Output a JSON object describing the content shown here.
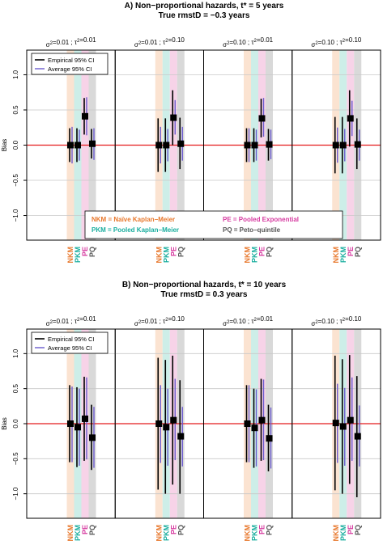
{
  "figure": {
    "colors": {
      "NKM": "#e8792e",
      "PKM": "#1aae9f",
      "PE": "#d63aa0",
      "PQ": "#555555",
      "NKM_band": "#fbe3d1",
      "PKM_band": "#cdeee8",
      "PE_band": "#f7d3e8",
      "PQ_band": "#d9d9d9",
      "zero_line": "#e41a1c",
      "empirical": "#000000",
      "average": "#6a5acd"
    },
    "categories": [
      "NKM",
      "PKM",
      "PE",
      "PQ"
    ],
    "legend": {
      "empirical": "Empirical 95% CI",
      "average": "Average 95% CI"
    },
    "notes": [
      {
        "code": "NKM",
        "text": "NKM = Naïve Kaplan−Meier"
      },
      {
        "code": "PE",
        "text": "PE = Pooled Exponential"
      },
      {
        "code": "PKM",
        "text": "PKM = Pooled Kaplan−Meier"
      },
      {
        "code": "PQ",
        "text": "PQ = Peto−quintile"
      }
    ]
  },
  "chart_data": [
    {
      "type": "scatter",
      "title": "A) Non−proportional hazards, t* = 5 years",
      "subtitle": "True rmstD = −0.3 years",
      "ylabel": "Bias",
      "ylim": [
        -1.35,
        1.35
      ],
      "yticks": [
        -1.0,
        -0.5,
        0.0,
        0.5,
        1.0
      ],
      "ytick_labels": [
        "−1.0",
        "−0.5",
        "0.0",
        "0.5",
        "1.0"
      ],
      "grid": true,
      "legend_position": "top-left",
      "panels": [
        {
          "label": "σ²=0.01 ; τ²=0.01",
          "points": [
            {
              "method": "NKM",
              "bias": 0.0,
              "emp": [
                -0.24,
                0.24
              ],
              "avg": [
                -0.26,
                0.26
              ]
            },
            {
              "method": "PKM",
              "bias": 0.0,
              "emp": [
                -0.24,
                0.24
              ],
              "avg": [
                -0.22,
                0.22
              ]
            },
            {
              "method": "PE",
              "bias": 0.41,
              "emp": [
                0.15,
                0.67
              ],
              "avg": [
                0.14,
                0.68
              ]
            },
            {
              "method": "PQ",
              "bias": 0.02,
              "emp": [
                -0.19,
                0.23
              ],
              "avg": [
                -0.21,
                0.24
              ]
            }
          ]
        },
        {
          "label": "σ²=0.01 ; τ²=0.10",
          "points": [
            {
              "method": "NKM",
              "bias": 0.0,
              "emp": [
                -0.38,
                0.38
              ],
              "avg": [
                -0.26,
                0.26
              ]
            },
            {
              "method": "PKM",
              "bias": 0.0,
              "emp": [
                -0.38,
                0.38
              ],
              "avg": [
                -0.23,
                0.23
              ]
            },
            {
              "method": "PE",
              "bias": 0.39,
              "emp": [
                0.0,
                0.78
              ],
              "avg": [
                0.15,
                0.64
              ]
            },
            {
              "method": "PQ",
              "bias": 0.02,
              "emp": [
                -0.34,
                0.39
              ],
              "avg": [
                -0.22,
                0.26
              ]
            }
          ]
        },
        {
          "label": "σ²=0.10 ; τ²=0.01",
          "points": [
            {
              "method": "NKM",
              "bias": 0.0,
              "emp": [
                -0.24,
                0.24
              ],
              "avg": [
                -0.24,
                0.24
              ]
            },
            {
              "method": "PKM",
              "bias": 0.0,
              "emp": [
                -0.24,
                0.24
              ],
              "avg": [
                -0.22,
                0.22
              ]
            },
            {
              "method": "PE",
              "bias": 0.38,
              "emp": [
                0.11,
                0.66
              ],
              "avg": [
                0.12,
                0.67
              ]
            },
            {
              "method": "PQ",
              "bias": 0.01,
              "emp": [
                -0.22,
                0.23
              ],
              "avg": [
                -0.2,
                0.22
              ]
            }
          ]
        },
        {
          "label": "σ²=0.10 ; τ²=0.10",
          "points": [
            {
              "method": "NKM",
              "bias": 0.0,
              "emp": [
                -0.4,
                0.4
              ],
              "avg": [
                -0.25,
                0.25
              ]
            },
            {
              "method": "PKM",
              "bias": 0.0,
              "emp": [
                -0.4,
                0.4
              ],
              "avg": [
                -0.23,
                0.23
              ]
            },
            {
              "method": "PE",
              "bias": 0.38,
              "emp": [
                -0.02,
                0.78
              ],
              "avg": [
                0.13,
                0.63
              ]
            },
            {
              "method": "PQ",
              "bias": 0.01,
              "emp": [
                -0.34,
                0.38
              ],
              "avg": [
                -0.22,
                0.22
              ]
            }
          ]
        }
      ]
    },
    {
      "type": "scatter",
      "title": "B) Non−proportional hazards, t* = 10 years",
      "subtitle": "True rmstD = 0.3 years",
      "ylabel": "Bias",
      "ylim": [
        -1.35,
        1.35
      ],
      "yticks": [
        -1.0,
        -0.5,
        0.0,
        0.5,
        1.0
      ],
      "ytick_labels": [
        "−1.0",
        "−0.5",
        "0.0",
        "0.5",
        "1.0"
      ],
      "grid": true,
      "legend_position": "top-left",
      "panels": [
        {
          "label": "σ²=0.01 ; τ²=0.01",
          "points": [
            {
              "method": "NKM",
              "bias": 0.0,
              "emp": [
                -0.55,
                0.55
              ],
              "avg": [
                -0.55,
                0.53
              ]
            },
            {
              "method": "PKM",
              "bias": -0.05,
              "emp": [
                -0.62,
                0.52
              ],
              "avg": [
                -0.6,
                0.5
              ]
            },
            {
              "method": "PE",
              "bias": 0.07,
              "emp": [
                -0.53,
                0.67
              ],
              "avg": [
                -0.51,
                0.66
              ]
            },
            {
              "method": "PQ",
              "bias": -0.2,
              "emp": [
                -0.66,
                0.27
              ],
              "avg": [
                -0.63,
                0.24
              ]
            }
          ]
        },
        {
          "label": "σ²=0.01 ; τ²=0.10",
          "points": [
            {
              "method": "NKM",
              "bias": 0.0,
              "emp": [
                -0.94,
                0.94
              ],
              "avg": [
                -0.56,
                0.55
              ]
            },
            {
              "method": "PKM",
              "bias": -0.05,
              "emp": [
                -1.0,
                0.91
              ],
              "avg": [
                -0.6,
                0.5
              ]
            },
            {
              "method": "PE",
              "bias": 0.05,
              "emp": [
                -0.87,
                0.97
              ],
              "avg": [
                -0.52,
                0.64
              ]
            },
            {
              "method": "PQ",
              "bias": -0.18,
              "emp": [
                -1.0,
                0.62
              ],
              "avg": [
                -0.61,
                0.24
              ]
            }
          ]
        },
        {
          "label": "σ²=0.10 ; τ²=0.01",
          "points": [
            {
              "method": "NKM",
              "bias": 0.0,
              "emp": [
                -0.55,
                0.55
              ],
              "avg": [
                -0.55,
                0.55
              ]
            },
            {
              "method": "PKM",
              "bias": -0.06,
              "emp": [
                -0.63,
                0.5
              ],
              "avg": [
                -0.61,
                0.49
              ]
            },
            {
              "method": "PE",
              "bias": 0.05,
              "emp": [
                -0.53,
                0.64
              ],
              "avg": [
                -0.52,
                0.63
              ]
            },
            {
              "method": "PQ",
              "bias": -0.21,
              "emp": [
                -0.68,
                0.27
              ],
              "avg": [
                -0.64,
                0.23
              ]
            }
          ]
        },
        {
          "label": "σ²=0.10 ; τ²=0.10",
          "points": [
            {
              "method": "NKM",
              "bias": 0.01,
              "emp": [
                -0.95,
                0.97
              ],
              "avg": [
                -0.56,
                0.57
              ]
            },
            {
              "method": "PKM",
              "bias": -0.04,
              "emp": [
                -1.0,
                0.92
              ],
              "avg": [
                -0.6,
                0.51
              ]
            },
            {
              "method": "PE",
              "bias": 0.05,
              "emp": [
                -0.86,
                0.98
              ],
              "avg": [
                -0.53,
                0.66
              ]
            },
            {
              "method": "PQ",
              "bias": -0.18,
              "emp": [
                -1.05,
                0.68
              ],
              "avg": [
                -0.61,
                0.26
              ]
            }
          ]
        }
      ]
    }
  ]
}
